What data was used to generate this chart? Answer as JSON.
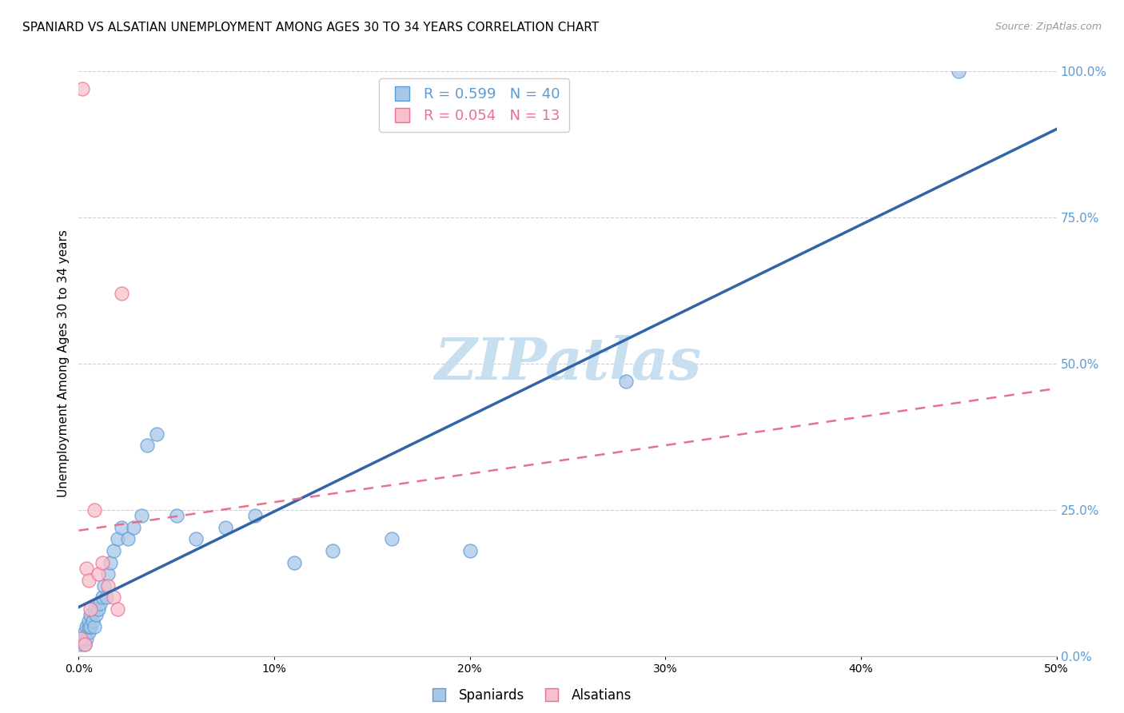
{
  "title": "SPANIARD VS ALSATIAN UNEMPLOYMENT AMONG AGES 30 TO 34 YEARS CORRELATION CHART",
  "source": "Source: ZipAtlas.com",
  "ylabel": "Unemployment Among Ages 30 to 34 years",
  "xlim": [
    0.0,
    0.5
  ],
  "ylim": [
    0.0,
    1.0
  ],
  "xticks": [
    0.0,
    0.1,
    0.2,
    0.3,
    0.4,
    0.5
  ],
  "yticks_right": [
    0.0,
    0.25,
    0.5,
    0.75,
    1.0
  ],
  "spaniards_x": [
    0.001,
    0.002,
    0.003,
    0.003,
    0.004,
    0.004,
    0.005,
    0.005,
    0.005,
    0.006,
    0.006,
    0.007,
    0.008,
    0.008,
    0.009,
    0.01,
    0.011,
    0.012,
    0.013,
    0.014,
    0.015,
    0.016,
    0.018,
    0.02,
    0.022,
    0.025,
    0.028,
    0.032,
    0.035,
    0.04,
    0.05,
    0.06,
    0.075,
    0.09,
    0.11,
    0.13,
    0.16,
    0.2,
    0.28,
    0.45
  ],
  "spaniards_y": [
    0.02,
    0.03,
    0.02,
    0.04,
    0.03,
    0.05,
    0.04,
    0.05,
    0.06,
    0.05,
    0.07,
    0.06,
    0.05,
    0.08,
    0.07,
    0.08,
    0.09,
    0.1,
    0.12,
    0.1,
    0.14,
    0.16,
    0.18,
    0.2,
    0.22,
    0.2,
    0.22,
    0.24,
    0.36,
    0.38,
    0.24,
    0.2,
    0.22,
    0.24,
    0.16,
    0.18,
    0.2,
    0.18,
    0.47,
    1.0
  ],
  "alsatians_x": [
    0.001,
    0.002,
    0.003,
    0.004,
    0.005,
    0.006,
    0.008,
    0.01,
    0.012,
    0.015,
    0.018,
    0.02,
    0.022
  ],
  "alsatians_y": [
    0.03,
    0.97,
    0.02,
    0.15,
    0.13,
    0.08,
    0.25,
    0.14,
    0.16,
    0.12,
    0.1,
    0.08,
    0.62
  ],
  "spaniard_R": 0.599,
  "spaniard_N": 40,
  "alsatian_R": 0.054,
  "alsatian_N": 13,
  "color_spaniard_fill": "#a8c8e8",
  "color_spaniard_edge": "#5b9bd5",
  "color_alsatian_fill": "#f8c0cc",
  "color_alsatian_edge": "#e87090",
  "color_spaniard_line": "#3265a8",
  "color_alsatian_line": "#e87090",
  "legend_label_spaniard": "Spaniards",
  "legend_label_alsatian": "Alsatians",
  "background_color": "#ffffff",
  "grid_color": "#d0d0d0",
  "axis_color": "#5b9bd5",
  "title_fontsize": 11,
  "label_fontsize": 11,
  "watermark_text": "ZIPatlas",
  "watermark_color": "#c8dff0"
}
